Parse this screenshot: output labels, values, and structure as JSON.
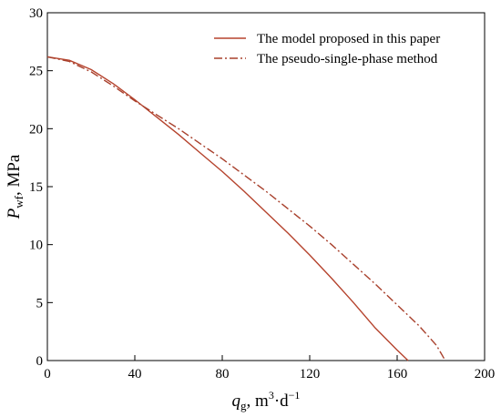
{
  "chart_data": {
    "type": "line",
    "xlim": [
      0,
      200
    ],
    "ylim": [
      0,
      30
    ],
    "x_ticks": [
      0,
      40,
      80,
      120,
      160,
      200
    ],
    "y_ticks": [
      0,
      5,
      10,
      15,
      20,
      25,
      30
    ],
    "x_tick_labels": [
      "0",
      "40",
      "80",
      "120",
      "160",
      "200"
    ],
    "y_tick_labels": [
      "0",
      "5",
      "10",
      "15",
      "20",
      "25",
      "30"
    ],
    "xlabel": {
      "main": "q",
      "sub": "g",
      "units": ", m",
      "sup1": "3",
      "mid": "·d",
      "sup2": "−1"
    },
    "ylabel": {
      "main": "P",
      "sub": "wf",
      "units": ", MPa"
    },
    "grid": false,
    "legend_position": "top-right",
    "series": [
      {
        "name": "The model proposed in this paper",
        "color": "#b5432d",
        "style": "solid",
        "points": [
          [
            0,
            26.2
          ],
          [
            10,
            25.9
          ],
          [
            20,
            25.1
          ],
          [
            30,
            23.9
          ],
          [
            40,
            22.5
          ],
          [
            50,
            21.0
          ],
          [
            60,
            19.5
          ],
          [
            70,
            17.9
          ],
          [
            80,
            16.3
          ],
          [
            90,
            14.6
          ],
          [
            100,
            12.8
          ],
          [
            110,
            11.0
          ],
          [
            120,
            9.1
          ],
          [
            130,
            7.1
          ],
          [
            140,
            5.0
          ],
          [
            150,
            2.8
          ],
          [
            160,
            0.9
          ],
          [
            165,
            0
          ]
        ]
      },
      {
        "name": "The pseudo-single-phase method",
        "color": "#a8402c",
        "style": "dashdot",
        "points": [
          [
            0,
            26.2
          ],
          [
            10,
            25.8
          ],
          [
            20,
            24.9
          ],
          [
            30,
            23.7
          ],
          [
            40,
            22.4
          ],
          [
            50,
            21.2
          ],
          [
            60,
            20.0
          ],
          [
            70,
            18.7
          ],
          [
            80,
            17.4
          ],
          [
            90,
            16.0
          ],
          [
            100,
            14.6
          ],
          [
            110,
            13.1
          ],
          [
            120,
            11.6
          ],
          [
            130,
            10.0
          ],
          [
            140,
            8.3
          ],
          [
            150,
            6.6
          ],
          [
            160,
            4.8
          ],
          [
            170,
            3.0
          ],
          [
            178,
            1.3
          ],
          [
            182,
            0
          ]
        ]
      }
    ]
  }
}
